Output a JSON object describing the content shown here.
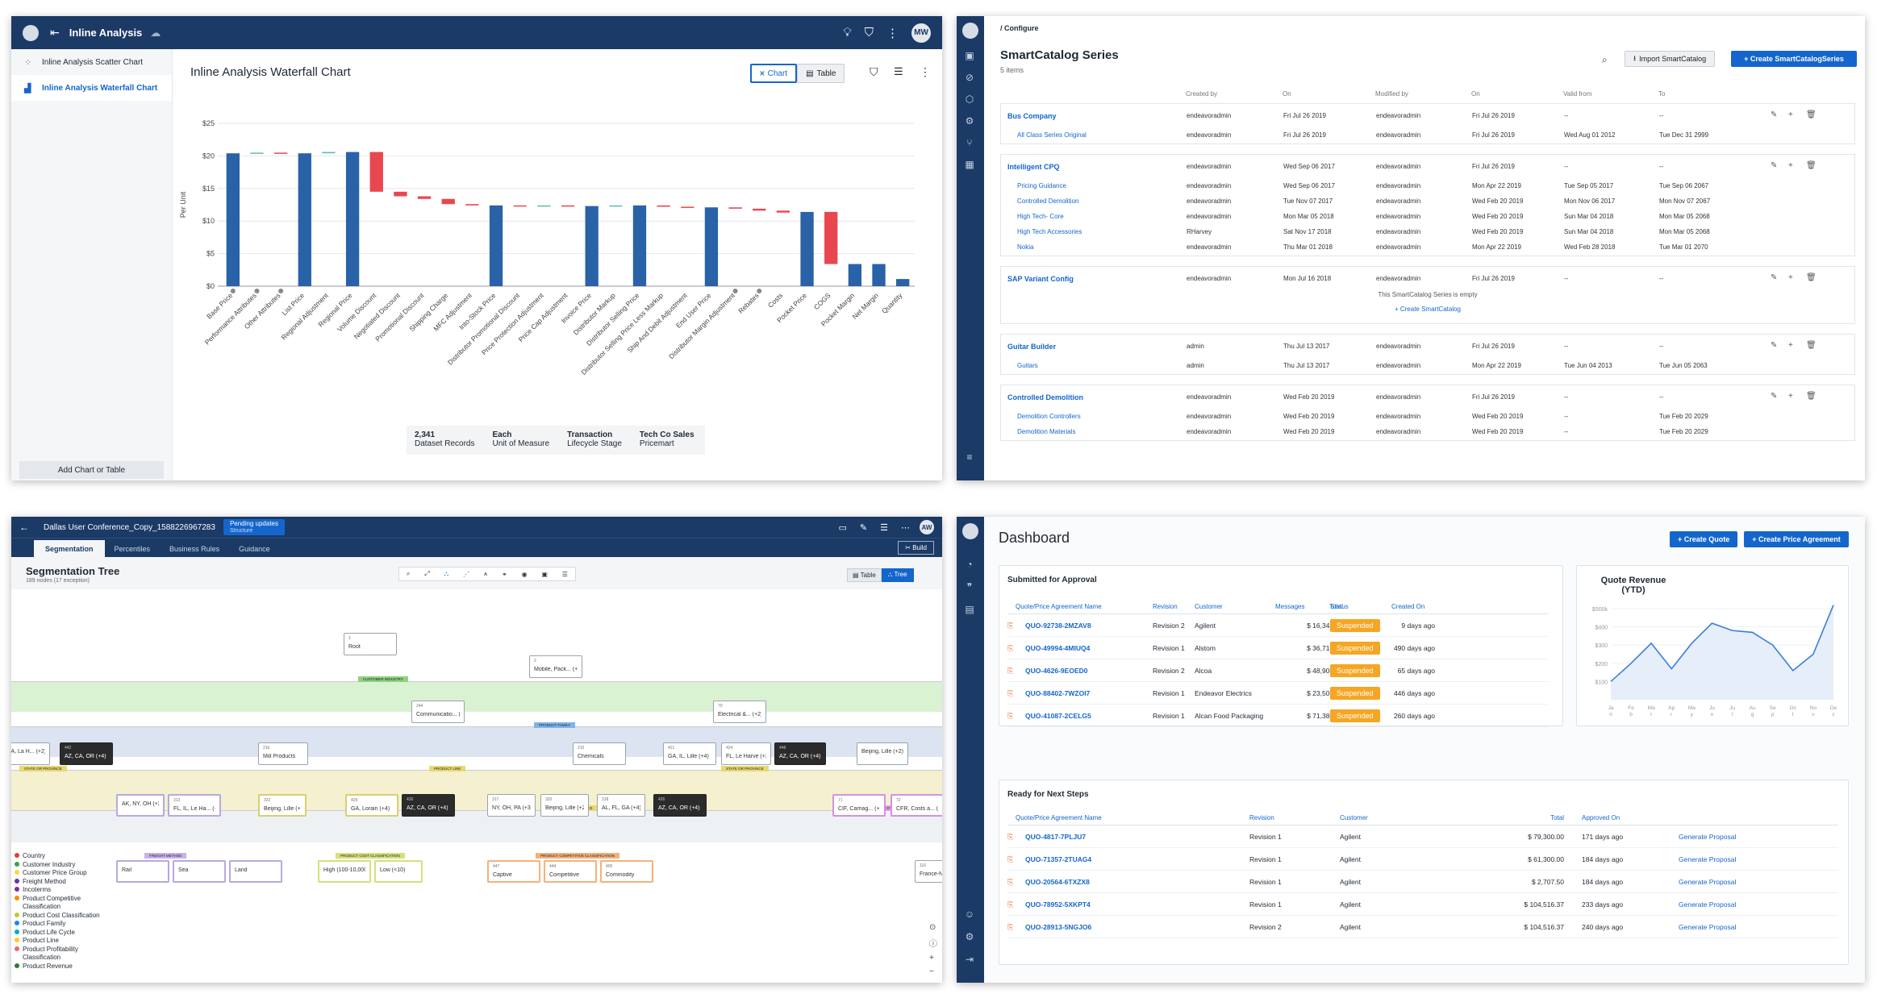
{
  "inline": {
    "title": "Inline Analysis",
    "avatar": "MW",
    "sidebar": [
      {
        "label": "Inline Analysis Scatter Chart"
      },
      {
        "label": "Inline Analysis Waterfall Chart"
      }
    ],
    "add_button": "Add Chart or Table",
    "chart_title": "Inline Analysis Waterfall Chart",
    "toggle_chart": "Chart",
    "toggle_table": "Table",
    "stats": [
      {
        "value": "2,341",
        "label": "Dataset Records"
      },
      {
        "value": "Each",
        "label": "Unit of Measure"
      },
      {
        "value": "Transaction",
        "label": "Lifecycle Stage"
      },
      {
        "value": "Tech Co Sales",
        "label": "Pricemart"
      }
    ]
  },
  "chart_data": {
    "type": "bar",
    "title": "Inline Analysis Waterfall Chart",
    "xlabel": "",
    "ylabel": "Per Unit",
    "ylim": [
      0,
      25
    ],
    "yticks": [
      "$0",
      "$5",
      "$10",
      "$15",
      "$20",
      "$25"
    ],
    "categories": [
      "Base Price",
      "Performance Attributes",
      "Other Attributes",
      "List Price",
      "Regional Adjustment",
      "Regional Price",
      "Volume Discount",
      "Negotiated Discount",
      "Promotional Discount",
      "Shipping Charge",
      "MFC Adjustment",
      "Into-Stock Price",
      "Distributor Promotional Discount",
      "Price Protection Adjustment",
      "Price Cap Adjustment",
      "Invoice Price",
      "Distributor Markup",
      "Distributor Selling Price",
      "Distributor Selling Price Less Markup",
      "Ship And Debit Adjustment",
      "End User Price",
      "Distributor Margin Adjustment",
      "Rebates",
      "Costs",
      "Pocket Price",
      "COGS",
      "Pocket Margin",
      "Net Margin",
      "Quantity"
    ],
    "series": [
      {
        "values": [
          [
            0,
            20.4
          ],
          [
            20.4,
            20.5
          ],
          [
            20.5,
            20.4
          ],
          [
            0,
            20.4
          ],
          [
            20.4,
            20.6
          ],
          [
            0,
            20.6
          ],
          [
            20.6,
            14.5
          ],
          [
            14.5,
            13.8
          ],
          [
            13.8,
            13.4
          ],
          [
            13.4,
            12.6
          ],
          [
            12.6,
            12.4
          ],
          [
            0,
            12.4
          ],
          [
            12.4,
            12.3
          ],
          [
            12.3,
            12.4
          ],
          [
            12.4,
            12.3
          ],
          [
            0,
            12.3
          ],
          [
            12.3,
            12.4
          ],
          [
            0,
            12.4
          ],
          [
            12.4,
            12.2
          ],
          [
            12.2,
            12.1
          ],
          [
            0,
            12.1
          ],
          [
            12.1,
            11.9
          ],
          [
            11.9,
            11.6
          ],
          [
            11.6,
            11.3
          ],
          [
            0,
            11.4
          ],
          [
            11.4,
            3.4
          ],
          [
            0,
            3.4
          ],
          [
            0,
            3.4
          ],
          [
            0,
            1.1
          ]
        ]
      }
    ]
  },
  "catalog": {
    "breadcrumb": "/ Configure",
    "title": "SmartCatalog Series",
    "count": "5 items",
    "import_btn": "Import SmartCatalog",
    "create_btn": "+ Create SmartCatalogSeries",
    "headers": [
      "Created by",
      "On",
      "Modified by",
      "On",
      "Valid from",
      "To"
    ],
    "groups": [
      {
        "name": "Bus Company",
        "row": [
          "endeavoradmin",
          "Fri Jul 26 2019",
          "endeavoradmin",
          "Fri Jul 26 2019",
          "--",
          "--"
        ],
        "children": [
          {
            "name": "All Class Series Original",
            "row": [
              "endeavoradmin",
              "Fri Jul 26 2019",
              "endeavoradmin",
              "Fri Jul 26 2019",
              "Wed Aug 01 2012",
              "Tue Dec 31 2999"
            ]
          }
        ]
      },
      {
        "name": "Intelligent CPQ",
        "row": [
          "endeavoradmin",
          "Wed Sep 06 2017",
          "endeavoradmin",
          "Fri Jul 26 2019",
          "--",
          "--"
        ],
        "children": [
          {
            "name": "Pricing Guidance",
            "row": [
              "endeavoradmin",
              "Wed Sep 06 2017",
              "endeavoradmin",
              "Mon Apr 22 2019",
              "Tue Sep 05 2017",
              "Tue Sep 06 2067"
            ]
          },
          {
            "name": "Controlled Demolition",
            "row": [
              "endeavoradmin",
              "Tue Nov 07 2017",
              "endeavoradmin",
              "Wed Feb 20 2019",
              "Mon Nov 06 2017",
              "Mon Nov 07 2067"
            ]
          },
          {
            "name": "High Tech- Core",
            "row": [
              "endeavoradmin",
              "Mon Mar 05 2018",
              "endeavoradmin",
              "Wed Feb 20 2019",
              "Sun Mar 04 2018",
              "Mon Mar 05 2068"
            ]
          },
          {
            "name": "High Tech Accessories",
            "row": [
              "RHarvey",
              "Sat Nov 17 2018",
              "endeavoradmin",
              "Wed Feb 20 2019",
              "Sun Mar 04 2018",
              "Mon Mar 05 2068"
            ]
          },
          {
            "name": "Nokia",
            "row": [
              "endeavoradmin",
              "Thu Mar 01 2018",
              "endeavoradmin",
              "Mon Apr 22 2019",
              "Wed Feb 28 2018",
              "Tue Mar 01 2070"
            ]
          }
        ]
      },
      {
        "name": "SAP Variant Config",
        "row": [
          "endeavoradmin",
          "Mon Jul 16 2018",
          "endeavoradmin",
          "Fri Jul 26 2019",
          "--",
          "--"
        ],
        "empty": "This SmartCatalog Series is empty",
        "empty_link": "+ Create SmartCatalog",
        "children": []
      },
      {
        "name": "Guitar Builder",
        "row": [
          "admin",
          "Thu Jul 13 2017",
          "endeavoradmin",
          "Fri Jul 26 2019",
          "--",
          "--"
        ],
        "children": [
          {
            "name": "Guitars",
            "row": [
              "admin",
              "Thu Jul 13 2017",
              "endeavoradmin",
              "Mon Apr 22 2019",
              "Tue Jun 04 2013",
              "Tue Jun 05 2063"
            ]
          }
        ]
      },
      {
        "name": "Controlled Demolition",
        "row": [
          "endeavoradmin",
          "Wed Feb 20 2019",
          "endeavoradmin",
          "Fri Jul 26 2019",
          "--",
          "--"
        ],
        "children": [
          {
            "name": "Demolition Controllers",
            "row": [
              "endeavoradmin",
              "Wed Feb 20 2019",
              "endeavoradmin",
              "Wed Feb 20 2019",
              "--",
              "Tue Feb 20 2029"
            ]
          },
          {
            "name": "Demolition Materials",
            "row": [
              "endeavoradmin",
              "Wed Feb 20 2019",
              "endeavoradmin",
              "Wed Feb 20 2019",
              "--",
              "Tue Feb 20 2029"
            ]
          }
        ]
      }
    ]
  },
  "seg": {
    "title": "Dallas User Conference_Copy_1588226967283",
    "pending": "Pending updates",
    "pending_sub": "Structure",
    "avatar": "AW",
    "tabs": [
      "Segmentation",
      "Percentiles",
      "Business Rules",
      "Guidance"
    ],
    "build": "Build",
    "tree_title": "Segmentation Tree",
    "tree_sub": "189 nodes (17 exception)",
    "view_table": "Table",
    "view_tree": "Tree",
    "band_labels": [
      "CUSTOMER INDUSTRY",
      "PRODUCT FAMILY",
      "PRODUCT LINE",
      "STATE OR PROVINCE",
      "STATE OR PROVINCE",
      "STATE OR PROVINCE",
      "INCOTERMS",
      "FREIGHT METHOD",
      "PRODUCT COST CLASSIFICATION",
      "PRODUCT COMPETITIVE CLASSIFICATION"
    ],
    "nodes": [
      {
        "t": "Root",
        "n": "1"
      },
      {
        "t": "Mobile, Pack... (+2)",
        "n": "2"
      },
      {
        "t": "Communicatio... (+3)",
        "n": "244"
      },
      {
        "t": "Electrical &... (+2)",
        "n": "70"
      },
      {
        "t": "GA, La H... (+2)",
        "n": ""
      },
      {
        "t": "AZ, CA, OR (+4)",
        "n": "442"
      },
      {
        "t": "Mill Products",
        "n": "216"
      },
      {
        "t": "Chemicals",
        "n": "215"
      },
      {
        "t": "GA, IL, Lille (+4)",
        "n": "421"
      },
      {
        "t": "FL, Le Harve (+3)",
        "n": "424"
      },
      {
        "t": "AZ, CA, OR (+4)",
        "n": "448"
      },
      {
        "t": "Beijing, Lille (+2)",
        "n": ""
      },
      {
        "t": "AK, NY, OH (+2)",
        "n": ""
      },
      {
        "t": "FL, IL, Le Ha... (+3)",
        "n": "313"
      },
      {
        "t": "Beijing, Lille (+2)",
        "n": "322"
      },
      {
        "t": "GA, Lorain (+4)",
        "n": "429"
      },
      {
        "t": "AZ, CA, OR (+4)",
        "n": "436"
      },
      {
        "t": "NY, OH, PA (+3)",
        "n": "317"
      },
      {
        "t": "Beijing, Lille (+2)",
        "n": "320"
      },
      {
        "t": "AL, FL, GA (+4)",
        "n": "318"
      },
      {
        "t": "AZ, CA, OR (+4)",
        "n": "426"
      },
      {
        "t": "CIF, Carriag... (+3)",
        "n": "71"
      },
      {
        "t": "CFR, Costs a... (+3)",
        "n": "72"
      },
      {
        "t": "Rail",
        "n": ""
      },
      {
        "t": "Sea",
        "n": ""
      },
      {
        "t": "Land",
        "n": ""
      },
      {
        "t": "High (100-10,000... (+2)",
        "n": ""
      },
      {
        "t": "Low (<10)",
        "n": ""
      },
      {
        "t": "Captive",
        "n": "447"
      },
      {
        "t": "Competitive",
        "n": "444"
      },
      {
        "t": "Commodity",
        "n": "405"
      },
      {
        "t": "France-N...",
        "n": "116"
      }
    ],
    "legend": [
      {
        "label": "Country",
        "color": "#e53935"
      },
      {
        "label": "Customer Industry",
        "color": "#43a047"
      },
      {
        "label": "Customer Price Group",
        "color": "#fdd835"
      },
      {
        "label": "Freight Method",
        "color": "#5e35b1"
      },
      {
        "label": "Incoterms",
        "color": "#8e24aa"
      },
      {
        "label": "Product Competitive Classification",
        "color": "#fb8c00"
      },
      {
        "label": "Product Cost Classification",
        "color": "#c0ca33"
      },
      {
        "label": "Product Family",
        "color": "#1e88e5"
      },
      {
        "label": "Product Life Cycle",
        "color": "#00acc1"
      },
      {
        "label": "Product Line",
        "color": "#ffca28"
      },
      {
        "label": "Product Profitability Classification",
        "color": "#ef6c6c"
      },
      {
        "label": "Product Revenue",
        "color": "#2e7d32"
      }
    ]
  },
  "dash": {
    "title": "Dashboard",
    "create_quote": "+ Create Quote",
    "create_pa": "+ Create Price Agreement",
    "approval_title": "Submitted for Approval",
    "approval_headers": [
      "Quote/Price Agreement Name",
      "Revision",
      "Customer",
      "Total",
      "Messages",
      "Status",
      "Created On"
    ],
    "approval_rows": [
      [
        "QUO-92738-2MZAV8",
        "Revision 2",
        "Agilent",
        "$ 16,343.00",
        "",
        "Suspended",
        "9 days ago"
      ],
      [
        "QUO-49994-4MIUQ4",
        "Revision 1",
        "Alstom",
        "$ 36,717.75",
        "",
        "Suspended",
        "490 days ago"
      ],
      [
        "QUO-4626-9EOED0",
        "Revision 2",
        "Alcoa",
        "$ 48,900.00",
        "",
        "Suspended",
        "65 days ago"
      ],
      [
        "QUO-88402-7WZOI7",
        "Revision 1",
        "Endeavor Electrics",
        "$ 23,500.00",
        "",
        "Suspended",
        "446 days ago"
      ],
      [
        "QUO-41087-2CELG5",
        "Revision 1",
        "Alcan Food Packaging",
        "$ 71,380.00",
        "",
        "Suspended",
        "260 days ago"
      ]
    ],
    "revenue_title": "Quote Revenue (YTD)",
    "revenue_chart": {
      "type": "area",
      "yticks": [
        "$100",
        "$200",
        "$300",
        "$400",
        "$500k"
      ],
      "months": [
        "Ja n",
        "Fe b",
        "Ma r",
        "Ap r",
        "Ma y",
        "Ju n",
        "Ju l",
        "Au g",
        "Se p",
        "Oc t",
        "No v",
        "De c"
      ],
      "values": [
        100,
        200,
        310,
        170,
        310,
        420,
        380,
        370,
        300,
        160,
        250,
        520
      ],
      "ylim": [
        0,
        540
      ]
    },
    "ready_title": "Ready for Next Steps",
    "ready_headers": [
      "Quote/Price Agreement Name",
      "Revision",
      "Customer",
      "Total",
      "Approved On"
    ],
    "ready_rows": [
      [
        "QUO-4817-7PLJU7",
        "Revision 1",
        "Agilent",
        "$ 79,300.00",
        "171 days ago",
        "Generate Proposal"
      ],
      [
        "QUO-71357-2TUAG4",
        "Revision 1",
        "Agilent",
        "$ 61,300.00",
        "184 days ago",
        "Generate Proposal"
      ],
      [
        "QUO-20564-6TXZX8",
        "Revision 1",
        "Agilent",
        "$ 2,707.50",
        "184 days ago",
        "Generate Proposal"
      ],
      [
        "QUO-78952-5XKPT4",
        "Revision 1",
        "Agilent",
        "$ 104,516.37",
        "233 days ago",
        "Generate Proposal"
      ],
      [
        "QUO-28913-5NGJO6",
        "Revision 2",
        "Agilent",
        "$ 104,516.37",
        "240 days ago",
        "Generate Proposal"
      ]
    ]
  }
}
